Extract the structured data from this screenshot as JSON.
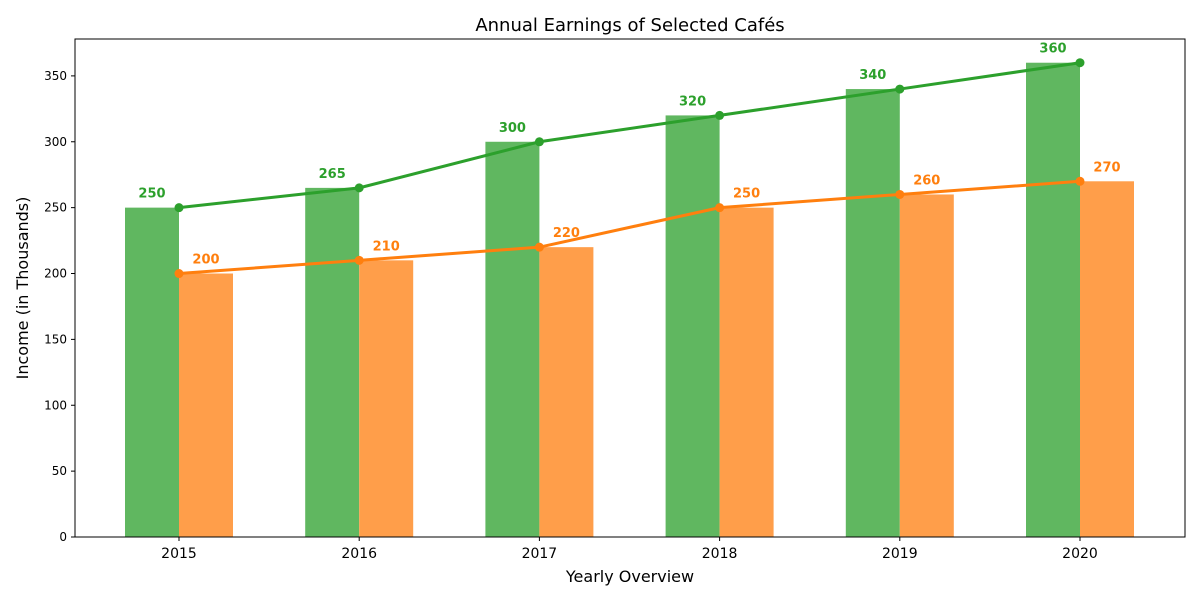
{
  "chart_data": {
    "type": "bar",
    "title": "Annual Earnings of Selected Cafés",
    "xlabel": "Yearly Overview",
    "ylabel": "Income (in Thousands)",
    "categories": [
      "2015",
      "2016",
      "2017",
      "2018",
      "2019",
      "2020"
    ],
    "ylim": [
      0,
      378
    ],
    "yticks": [
      0,
      50,
      100,
      150,
      200,
      250,
      300,
      350
    ],
    "grid": false,
    "legend": "none",
    "series": [
      {
        "values": [
          250,
          265,
          300,
          320,
          340,
          360
        ],
        "color": "#2ca02c",
        "bar_color": "#60b760",
        "overlay_line": true,
        "data_labels": [
          "250",
          "265",
          "300",
          "320",
          "340",
          "360"
        ]
      },
      {
        "values": [
          200,
          210,
          220,
          250,
          260,
          270
        ],
        "color": "#ff7f0e",
        "bar_color": "#ff9e4a",
        "overlay_line": true,
        "data_labels": [
          "200",
          "210",
          "220",
          "250",
          "260",
          "270"
        ]
      }
    ]
  }
}
